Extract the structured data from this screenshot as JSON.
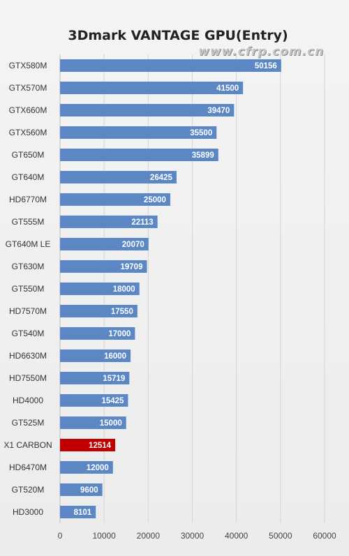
{
  "chart_data": {
    "type": "bar",
    "orientation": "horizontal",
    "title": "3Dmark VANTAGE GPU(Entry)",
    "watermark": "www.cfrp.com.cn",
    "categories": [
      "GTX580M",
      "GTX570M",
      "GTX660M",
      "GTX560M",
      "GT650M",
      "GT640M",
      "HD6770M",
      "GT555M",
      "GT640M LE",
      "GT630M",
      "GT550M",
      "HD7570M",
      "GT540M",
      "HD6630M",
      "HD7550M",
      "HD4000",
      "GT525M",
      "X1 CARBON",
      "HD6470M",
      "GT520M",
      "HD3000"
    ],
    "values": [
      50156,
      41500,
      39470,
      35500,
      35899,
      26425,
      25000,
      22113,
      20070,
      19709,
      18000,
      17550,
      17000,
      16000,
      15719,
      15425,
      15000,
      12514,
      12000,
      9600,
      8101
    ],
    "value_labels": [
      "50156",
      "41500",
      "39470",
      "35500",
      "35899",
      "26425",
      "25000",
      "22113",
      "20070",
      "19709",
      "18000",
      "17550",
      "17000",
      "16000",
      "15719",
      "15425",
      "15000",
      "12514",
      "12000",
      "9600",
      "8101"
    ],
    "highlight_category": "X1 CARBON",
    "xlim": [
      0,
      60000
    ],
    "x_ticks": [
      0,
      10000,
      20000,
      30000,
      40000,
      50000,
      60000
    ],
    "x_tick_labels": [
      "0",
      "10000",
      "20000",
      "30000",
      "40000",
      "50000",
      "60000"
    ],
    "grid": true,
    "colors": {
      "bar": "#5b87c5",
      "highlight": "#c00000",
      "grid": "#d4d4d4"
    }
  }
}
